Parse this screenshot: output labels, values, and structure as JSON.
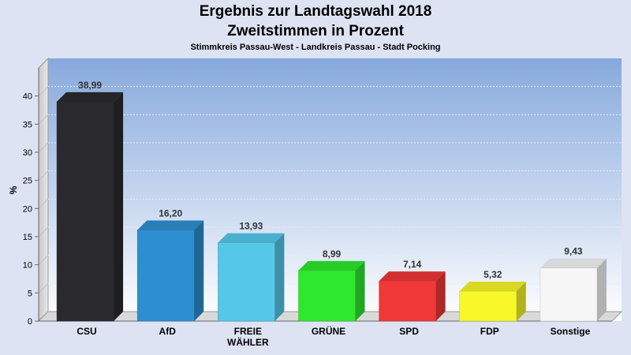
{
  "chart_data": {
    "type": "bar",
    "title": "Ergebnis zur Landtagswahl 2018",
    "subtitle": "Zweitstimmen in Prozent",
    "caption": "Stimmkreis Passau-West - Landkreis Passau - Stadt Pocking",
    "ylabel": "%",
    "xlabel": "",
    "ylim": [
      0,
      45
    ],
    "yticks": [
      0,
      5,
      10,
      15,
      20,
      25,
      30,
      35,
      40
    ],
    "grid": true,
    "categories": [
      [
        "CSU"
      ],
      [
        "AfD"
      ],
      [
        "FREIE",
        "WÄHLER"
      ],
      [
        "GRÜNE"
      ],
      [
        "SPD"
      ],
      [
        "FDP"
      ],
      [
        "Sonstige"
      ]
    ],
    "values": [
      38.99,
      16.2,
      13.93,
      8.99,
      7.14,
      5.32,
      9.43
    ],
    "value_labels": [
      "38,99",
      "16,20",
      "13,93",
      "8,99",
      "7,14",
      "5,32",
      "9,43"
    ],
    "colors": [
      "#2a2a2e",
      "#2d8fcf",
      "#55c8ea",
      "#2ee82e",
      "#f03838",
      "#f7f72a",
      "#f6f6f6"
    ]
  }
}
